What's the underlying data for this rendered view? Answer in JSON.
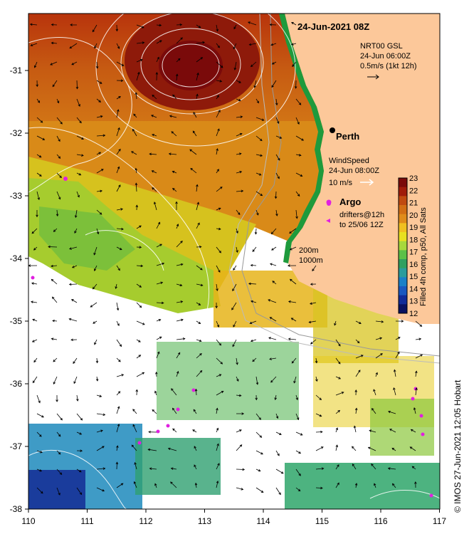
{
  "title": "24-Jun-2021 08Z",
  "current_legend": {
    "line1": "NRT00 GSL",
    "line2": "24-Jun 06:00Z",
    "line3": "0.5m/s (1kt 12h)"
  },
  "city": {
    "name": "Perth"
  },
  "wind_legend": {
    "line1": "WindSpeed",
    "line2": "24-Jun 08:00Z",
    "line3": "10 m/s"
  },
  "argo_label": "Argo",
  "drifters": {
    "line1": "drifters@12h",
    "line2": "to 25/06 12Z"
  },
  "isobath": {
    "line1": "200m",
    "line2": "1000m"
  },
  "colorbar": {
    "title": "Filled 4h comp, p50, All Sats",
    "ticks": [
      "23",
      "22",
      "21",
      "20",
      "19",
      "18",
      "17",
      "16",
      "15",
      "14",
      "13",
      "12"
    ],
    "colors": [
      "#7a0a0a",
      "#a01c0a",
      "#c04a10",
      "#d26e14",
      "#e08c1a",
      "#f0c020",
      "#e8e020",
      "#a8d83c",
      "#5cc048",
      "#30a060",
      "#2a9c9c",
      "#1a80c8",
      "#1a58c0",
      "#122c98",
      "#0a1260"
    ]
  },
  "x_ticks": [
    "110",
    "111",
    "112",
    "113",
    "114",
    "115",
    "116",
    "117"
  ],
  "y_ticks": [
    "-31",
    "-32",
    "-33",
    "-34",
    "-35",
    "-36",
    "-37",
    "-38"
  ],
  "credit": "© IMOS 27-Jun-2021 12:05 Hobart",
  "colors": {
    "land": "#fcc89a",
    "coast_green": "#1e9a3c",
    "drifter": "#e020e0"
  }
}
